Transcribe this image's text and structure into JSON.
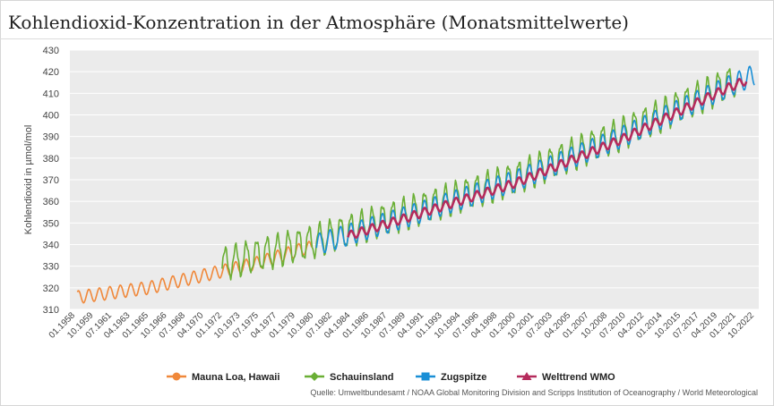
{
  "page": {
    "title": "Kohlendioxid-Konzentration in der Atmosphäre (Monatsmittelwerte)",
    "source": "Quelle: Umweltbundesamt / NOAA Global Monitoring Division and Scripps Institution of Oceanography / World Meteorological"
  },
  "chart_data": {
    "type": "line",
    "title": "Kohlendioxid-Konzentration in der Atmosphäre (Monatsmittelwerte)",
    "xlabel": "",
    "ylabel": "Kohlendioxid in µmol/mol",
    "xlim": [
      1958.0,
      2022.75
    ],
    "ylim": [
      310,
      430
    ],
    "yticks": [
      310,
      320,
      330,
      340,
      350,
      360,
      370,
      380,
      390,
      400,
      410,
      420,
      430
    ],
    "xtick_labels": [
      "01.1958",
      "10.1959",
      "07.1961",
      "04.1963",
      "01.1965",
      "10.1966",
      "07.1968",
      "04.1970",
      "01.1972",
      "10.1973",
      "07.1975",
      "04.1977",
      "01.1979",
      "10.1980",
      "07.1982",
      "04.1984",
      "01.1986",
      "10.1987",
      "07.1989",
      "04.1991",
      "01.1993",
      "10.1994",
      "07.1996",
      "04.1998",
      "01.2000",
      "10.2001",
      "07.2003",
      "04.2005",
      "01.2007",
      "10.2008",
      "07.2010",
      "04.2012",
      "01.2014",
      "10.2015",
      "07.2017",
      "04.2019",
      "01.2021",
      "10.2022"
    ],
    "grid": true,
    "legend_position": "bottom",
    "series": [
      {
        "name": "Mauna Loa, Hawaii",
        "color": "#f0883a",
        "marker": "circle",
        "x_start": 1958.2,
        "x_end": 1980.5,
        "trend": [
          [
            1958,
            315.5
          ],
          [
            1965,
            320.0
          ],
          [
            1970,
            325.5
          ],
          [
            1975,
            331.0
          ],
          [
            1980,
            338.5
          ]
        ],
        "amplitude": 6
      },
      {
        "name": "Schauinsland",
        "color": "#6aaf35",
        "marker": "diamond",
        "x_start": 1972.0,
        "x_end": 2021.0,
        "trend": [
          [
            1972,
            331.0
          ],
          [
            1980,
            340.5
          ],
          [
            1990,
            355.0
          ],
          [
            2000,
            370.5
          ],
          [
            2010,
            391.0
          ],
          [
            2021,
            416.0
          ]
        ],
        "amplitude": 14
      },
      {
        "name": "Zugspitze",
        "color": "#1a8fd6",
        "marker": "square",
        "x_start": 1981.0,
        "x_end": 2022.75,
        "trend": [
          [
            1981,
            340.0
          ],
          [
            1990,
            353.5
          ],
          [
            2000,
            369.5
          ],
          [
            2010,
            389.5
          ],
          [
            2020,
            412.5
          ],
          [
            2022.75,
            418.5
          ]
        ],
        "amplitude": 10
      },
      {
        "name": "Welttrend WMO",
        "color": "#b52b5c",
        "marker": "triangle",
        "x_start": 1984.0,
        "x_end": 2022.0,
        "trend": [
          [
            1984,
            344.0
          ],
          [
            1990,
            353.0
          ],
          [
            2000,
            368.5
          ],
          [
            2010,
            388.5
          ],
          [
            2020,
            412.0
          ],
          [
            2022,
            416.0
          ]
        ],
        "amplitude": 4
      }
    ]
  }
}
